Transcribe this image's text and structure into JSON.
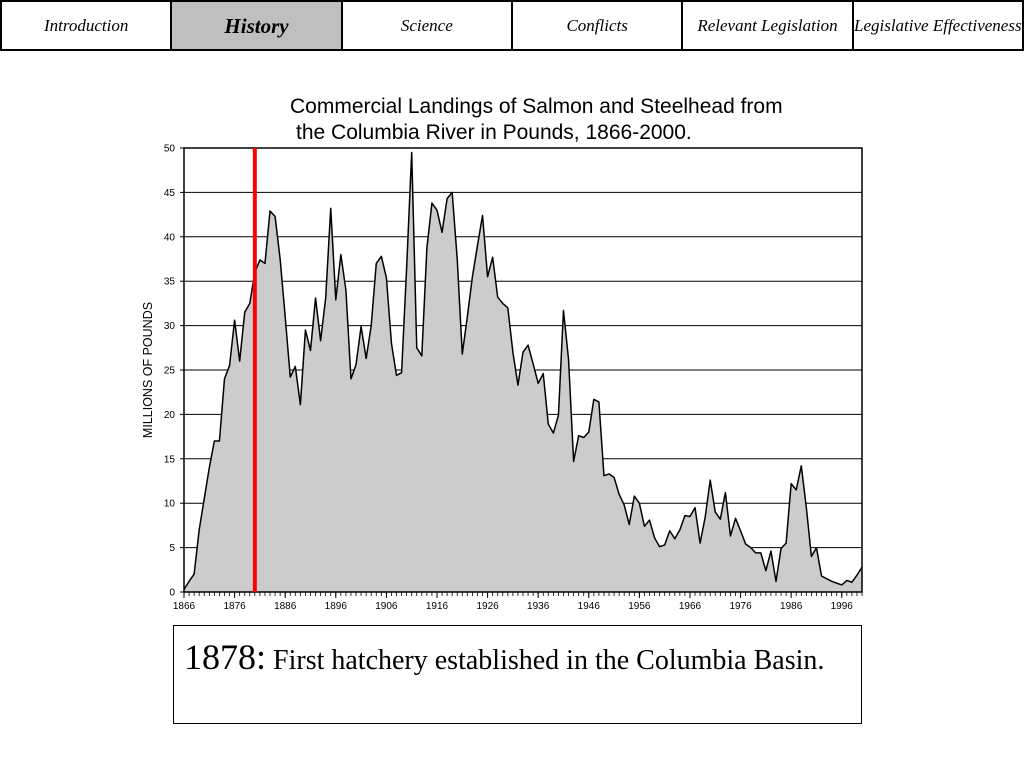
{
  "nav": {
    "tabs": [
      {
        "label": "Introduction",
        "active": false
      },
      {
        "label": "History",
        "active": true
      },
      {
        "label": "Science",
        "active": false
      },
      {
        "label": "Conflicts",
        "active": false
      },
      {
        "label": "Relevant Legislation",
        "active": false
      },
      {
        "label": "Legislative Effectiveness",
        "active": false
      }
    ]
  },
  "caption": {
    "year": "1878:",
    "text": " First hatchery established in the Columbia Basin."
  },
  "colors": {
    "area_fill": "#cccccc",
    "line": "#000000",
    "marker": "#ff0000",
    "active_tab": "#bfbfbf"
  },
  "chart_data": {
    "type": "area",
    "title": "Commercial Landings of Salmon and Steelhead from the Columbia River in Pounds, 1866-2000.",
    "title_line1": "Commercial Landings of Salmon and Steelhead from",
    "title_line2": "the Columbia River in Pounds, 1866-2000.",
    "ylabel": "MILLIONS OF POUNDS",
    "xlabel": "",
    "xlim": [
      1866,
      2000
    ],
    "ylim": [
      0,
      50
    ],
    "yticks": [
      0,
      5,
      10,
      15,
      20,
      25,
      30,
      35,
      40,
      45,
      50
    ],
    "xticks": [
      1866,
      1876,
      1886,
      1896,
      1906,
      1916,
      1926,
      1936,
      1946,
      1956,
      1966,
      1976,
      1986,
      1996
    ],
    "grid": "horizontal",
    "marker_year": 1880,
    "series": [
      {
        "x": [
          1866,
          1867,
          1868,
          1869,
          1870,
          1871,
          1872,
          1873,
          1874,
          1875,
          1876,
          1877,
          1878,
          1879,
          1880,
          1881,
          1882,
          1883,
          1884,
          1885,
          1886,
          1887,
          1888,
          1889,
          1890,
          1891,
          1892,
          1893,
          1894,
          1895,
          1896,
          1897,
          1898,
          1899,
          1900,
          1901,
          1902,
          1903,
          1904,
          1905,
          1906,
          1907,
          1908,
          1909,
          1910,
          1911,
          1912,
          1913,
          1914,
          1915,
          1916,
          1917,
          1918,
          1919,
          1920,
          1921,
          1922,
          1923,
          1924,
          1925,
          1926,
          1927,
          1928,
          1929,
          1930,
          1931,
          1932,
          1933,
          1934,
          1935,
          1936,
          1937,
          1938,
          1939,
          1940,
          1941,
          1942,
          1943,
          1944,
          1945,
          1946,
          1947,
          1948,
          1949,
          1950,
          1951,
          1952,
          1953,
          1954,
          1955,
          1956,
          1957,
          1958,
          1959,
          1960,
          1961,
          1962,
          1963,
          1964,
          1965,
          1966,
          1967,
          1968,
          1969,
          1970,
          1971,
          1972,
          1973,
          1974,
          1975,
          1976,
          1977,
          1978,
          1979,
          1980,
          1981,
          1982,
          1983,
          1984,
          1985,
          1986,
          1987,
          1988,
          1989,
          1990,
          1991,
          1992,
          1993,
          1994,
          1995,
          1996,
          1997,
          1998,
          1999,
          2000
        ],
        "values": [
          0.3,
          1.2,
          2,
          7,
          10.5,
          14,
          17,
          17,
          24,
          25.5,
          30.6,
          26,
          31.5,
          32.5,
          36,
          37.4,
          37,
          42.9,
          42.3,
          37.5,
          31,
          24.2,
          25.4,
          21.1,
          29.5,
          27.2,
          33.1,
          28.3,
          33.1,
          43.2,
          32.9,
          38,
          34,
          24,
          25.6,
          29.9,
          26.3,
          30,
          37,
          37.8,
          35.4,
          28,
          24.4,
          24.7,
          36.5,
          49.5,
          27.5,
          26.6,
          38.7,
          43.8,
          43,
          40.5,
          44.3,
          45,
          37.5,
          26.8,
          31,
          35.5,
          39,
          42.4,
          35.5,
          37.7,
          33.2,
          32.5,
          32,
          27,
          23.3,
          27,
          27.8,
          25.7,
          23.5,
          24.6,
          18.9,
          17.9,
          19.9,
          31.7,
          26.2,
          14.7,
          17.6,
          17.4,
          18,
          21.7,
          21.4,
          13.1,
          13.3,
          12.9,
          11,
          9.8,
          7.6,
          10.8,
          10,
          7.4,
          8.1,
          6.1,
          5.1,
          5.3,
          6.9,
          6,
          7,
          8.6,
          8.5,
          9.5,
          5.5,
          8.4,
          12.6,
          9,
          8.2,
          11.2,
          6.3,
          8.3,
          6.9,
          5.4,
          5,
          4.4,
          4.4,
          2.4,
          4.6,
          1.2,
          4.9,
          5.5,
          12.2,
          11.5,
          14.2,
          9.5,
          4,
          5,
          1.8,
          1.5,
          1.2,
          1,
          0.8,
          1.3,
          1.1,
          1.9,
          2.8
        ]
      }
    ]
  }
}
